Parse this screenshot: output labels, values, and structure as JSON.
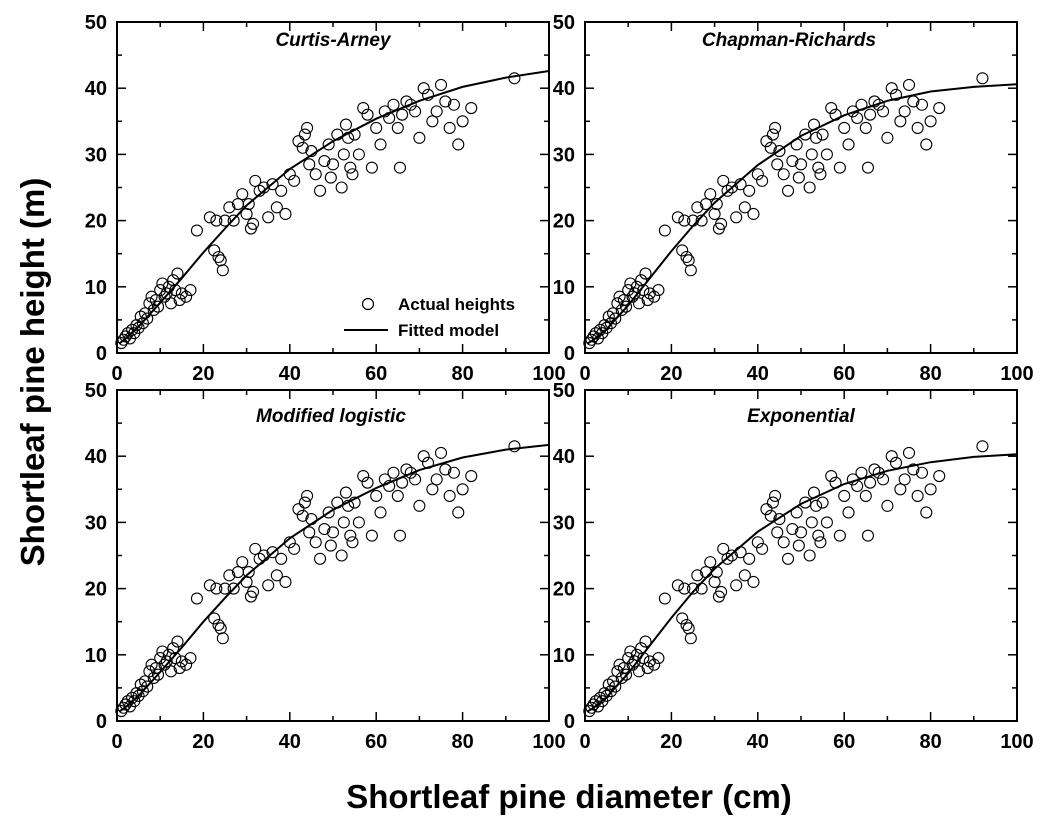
{
  "figure": {
    "xlabel": "Shortleaf pine diameter (cm)",
    "ylabel": "Shortleaf pine height (m)"
  },
  "legend": {
    "entries": [
      "Actual heights",
      "Fitted model"
    ],
    "placement": "lower-right of first panel"
  },
  "chart_data": [
    {
      "type": "scatter",
      "title": "Curtis-Arney",
      "xlim": [
        0,
        100
      ],
      "ylim": [
        0,
        50
      ],
      "xticks": [
        0,
        20,
        40,
        60,
        80,
        100
      ],
      "yticks": [
        0,
        10,
        20,
        30,
        40,
        50
      ],
      "series": [
        {
          "name": "Actual heights",
          "kind": "points",
          "ref": "observations"
        },
        {
          "name": "Fitted model",
          "kind": "line",
          "x": [
            0.5,
            2,
            5,
            10,
            15,
            20,
            25,
            30,
            40,
            50,
            60,
            70,
            80,
            90,
            100
          ],
          "y": [
            1.4,
            2.2,
            4.0,
            7.6,
            11.3,
            15.2,
            18.8,
            22.3,
            27.8,
            32.0,
            35.4,
            38.1,
            40.2,
            41.6,
            42.6
          ]
        }
      ]
    },
    {
      "type": "scatter",
      "title": "Chapman-Richards",
      "xlim": [
        0,
        100
      ],
      "ylim": [
        0,
        50
      ],
      "xticks": [
        0,
        20,
        40,
        60,
        80,
        100
      ],
      "yticks": [
        0,
        10,
        20,
        30,
        40,
        50
      ],
      "series": [
        {
          "name": "Actual heights",
          "kind": "points",
          "ref": "observations"
        },
        {
          "name": "Fitted model",
          "kind": "line",
          "x": [
            0.5,
            2,
            5,
            10,
            15,
            20,
            25,
            30,
            40,
            50,
            60,
            70,
            80,
            90,
            100
          ],
          "y": [
            1.4,
            2.0,
            3.6,
            7.2,
            11.3,
            15.4,
            19.2,
            22.7,
            28.4,
            32.8,
            35.9,
            38.1,
            39.5,
            40.2,
            40.6
          ]
        }
      ]
    },
    {
      "type": "scatter",
      "title": "Modified logistic",
      "xlim": [
        0,
        100
      ],
      "ylim": [
        0,
        50
      ],
      "xticks": [
        0,
        20,
        40,
        60,
        80,
        100
      ],
      "yticks": [
        0,
        10,
        20,
        30,
        40,
        50
      ],
      "series": [
        {
          "name": "Actual heights",
          "kind": "points",
          "ref": "observations"
        },
        {
          "name": "Fitted model",
          "kind": "line",
          "x": [
            0.5,
            2,
            5,
            10,
            15,
            20,
            25,
            30,
            40,
            50,
            60,
            70,
            80,
            90,
            100
          ],
          "y": [
            1.4,
            2.1,
            3.8,
            7.4,
            11.1,
            15.0,
            18.6,
            22.0,
            27.6,
            31.9,
            35.2,
            37.9,
            39.8,
            41.0,
            41.7
          ]
        }
      ]
    },
    {
      "type": "scatter",
      "title": "Exponential",
      "xlim": [
        0,
        100
      ],
      "ylim": [
        0,
        50
      ],
      "xticks": [
        0,
        20,
        40,
        60,
        80,
        100
      ],
      "yticks": [
        0,
        10,
        20,
        30,
        40,
        50
      ],
      "series": [
        {
          "name": "Actual heights",
          "kind": "points",
          "ref": "observations"
        },
        {
          "name": "Fitted model",
          "kind": "line",
          "x": [
            0.5,
            2,
            5,
            10,
            15,
            20,
            25,
            30,
            40,
            50,
            60,
            70,
            80,
            90,
            100
          ],
          "y": [
            1.4,
            2.0,
            3.6,
            7.2,
            11.4,
            15.6,
            19.5,
            23.0,
            28.6,
            32.8,
            35.8,
            37.8,
            39.1,
            39.9,
            40.3
          ]
        }
      ]
    }
  ],
  "observations": {
    "diameter_cm": [
      1.0,
      1.5,
      2.0,
      2.5,
      3.0,
      3.5,
      4.0,
      4.5,
      5.0,
      5.5,
      6.0,
      6.5,
      7.0,
      7.5,
      8.0,
      8.5,
      9.0,
      9.5,
      10.0,
      10.5,
      11.0,
      11.5,
      12.0,
      12.5,
      13.0,
      13.5,
      14.0,
      14.5,
      15.0,
      16.0,
      17.0,
      18.5,
      21.5,
      22.5,
      23.0,
      23.5,
      24.0,
      24.5,
      25.0,
      26.0,
      27.0,
      28.0,
      29.0,
      30.0,
      30.5,
      31.0,
      31.5,
      32.0,
      33.0,
      34.0,
      35.0,
      36.0,
      37.0,
      38.0,
      39.0,
      40.0,
      41.0,
      42.0,
      43.0,
      43.5,
      44.0,
      44.5,
      45.0,
      46.0,
      47.0,
      48.0,
      49.0,
      49.5,
      50.0,
      51.0,
      52.0,
      52.5,
      53.0,
      53.5,
      54.0,
      54.5,
      55.0,
      56.0,
      57.0,
      58.0,
      59.0,
      60.0,
      61.0,
      62.0,
      63.0,
      64.0,
      65.0,
      65.5,
      66.0,
      67.0,
      68.0,
      69.0,
      70.0,
      71.0,
      72.0,
      73.0,
      74.0,
      75.0,
      76.0,
      77.0,
      78.0,
      79.0,
      80.0,
      82.0,
      92.0
    ],
    "height_m": [
      1.5,
      2.0,
      2.5,
      3.0,
      2.2,
      3.5,
      3.0,
      4.2,
      3.8,
      5.5,
      4.5,
      6.0,
      5.2,
      7.5,
      8.5,
      6.5,
      8.0,
      7.0,
      9.5,
      10.5,
      8.5,
      9.0,
      10.0,
      7.5,
      11.0,
      9.5,
      12.0,
      8.0,
      9.0,
      8.5,
      9.5,
      18.5,
      20.5,
      15.5,
      20.0,
      14.5,
      14.0,
      12.5,
      20.0,
      22.0,
      20.0,
      22.5,
      24.0,
      21.0,
      22.5,
      18.8,
      19.5,
      26.0,
      24.5,
      25.0,
      20.5,
      25.5,
      22.0,
      24.5,
      21.0,
      27.0,
      26.0,
      32.0,
      31.0,
      33.0,
      34.0,
      28.5,
      30.5,
      27.0,
      24.5,
      29.0,
      31.5,
      26.5,
      28.5,
      33.0,
      25.0,
      30.0,
      34.5,
      32.5,
      28.0,
      27.0,
      33.0,
      30.0,
      37.0,
      36.0,
      28.0,
      34.0,
      31.5,
      36.5,
      35.5,
      37.5,
      34.0,
      28.0,
      36.0,
      38.0,
      37.5,
      36.5,
      32.5,
      40.0,
      39.0,
      35.0,
      36.5,
      40.5,
      38.0,
      34.0,
      37.5,
      31.5,
      35.0,
      37.0,
      41.5
    ]
  },
  "colors": {
    "points": "#000000",
    "line": "#000000",
    "background": "#ffffff"
  }
}
